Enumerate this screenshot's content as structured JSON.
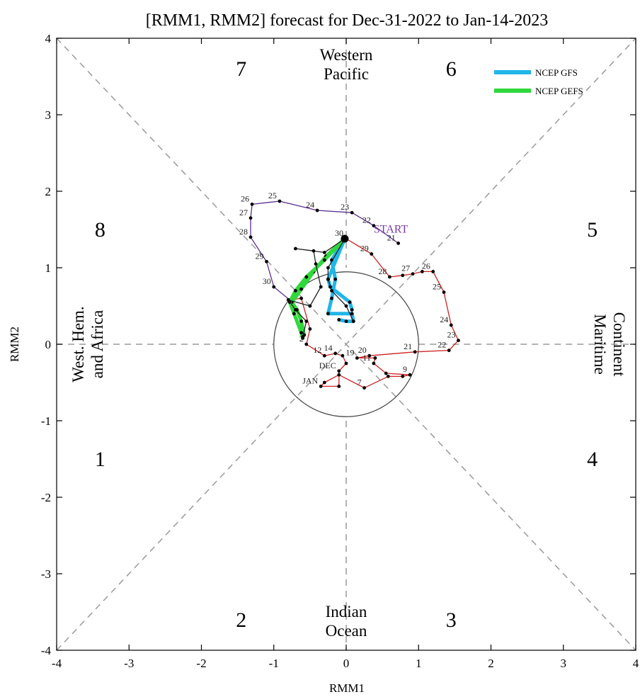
{
  "chart_data": {
    "type": "line",
    "title": "[RMM1, RMM2] forecast for Dec-31-2022 to Jan-14-2023",
    "xlabel": "RMM1",
    "ylabel": "RMM2",
    "xlim": [
      -4,
      4
    ],
    "ylim": [
      -4,
      4
    ],
    "xticks": [
      -4,
      -3,
      -2,
      -1,
      0,
      1,
      2,
      3,
      4
    ],
    "yticks": [
      -4,
      -3,
      -2,
      -1,
      0,
      1,
      2,
      3,
      4
    ],
    "xtick_labels": [
      "-4",
      "-3",
      "-2",
      "-1",
      "0",
      "1",
      "2",
      "3",
      "4"
    ],
    "ytick_labels": [
      "-4",
      "-3",
      "-2",
      "-1",
      "0",
      "1",
      "2",
      "3",
      "4"
    ],
    "phases": [
      {
        "label": "1",
        "x": -3.4,
        "y": -1.5
      },
      {
        "label": "2",
        "x": -1.45,
        "y": -3.6
      },
      {
        "label": "3",
        "x": 1.45,
        "y": -3.6
      },
      {
        "label": "4",
        "x": 3.4,
        "y": -1.5
      },
      {
        "label": "5",
        "x": 3.4,
        "y": 1.5
      },
      {
        "label": "6",
        "x": 1.45,
        "y": 3.6
      },
      {
        "label": "7",
        "x": -1.45,
        "y": 3.6
      },
      {
        "label": "8",
        "x": -3.4,
        "y": 1.5
      }
    ],
    "regions": {
      "top": [
        "Western",
        "Pacific"
      ],
      "bottom": [
        "Indian",
        "Ocean"
      ],
      "left": [
        "West. Hem.",
        "and Africa"
      ],
      "right": [
        "Maritime",
        "Continent"
      ]
    },
    "legend": {
      "placement": "top-right",
      "entries": [
        {
          "label": "NCEP GFS",
          "color": "#21b6e8"
        },
        {
          "label": "NCEP GEFS",
          "color": "#2fd83c"
        }
      ]
    },
    "start_label": "START",
    "series": [
      {
        "color": "#5b2d8e",
        "points": [
          [
            0.72,
            1.32
          ],
          [
            0.38,
            1.55
          ],
          [
            0.08,
            1.72
          ],
          [
            -0.4,
            1.75
          ],
          [
            -0.92,
            1.87
          ],
          [
            -1.3,
            1.83
          ],
          [
            -1.32,
            1.65
          ],
          [
            -1.32,
            1.4
          ],
          [
            -1.1,
            1.08
          ],
          [
            -1.0,
            0.75
          ],
          [
            -0.78,
            0.58
          ]
        ],
        "labels": [
          {
            "text": "21",
            "i": 0
          },
          {
            "text": "22",
            "i": 1
          },
          {
            "text": "23",
            "i": 2
          },
          {
            "text": "24",
            "i": 3
          },
          {
            "text": "25",
            "i": 4
          },
          {
            "text": "26",
            "i": 5
          },
          {
            "text": "27",
            "i": 6
          },
          {
            "text": "28",
            "i": 7
          },
          {
            "text": "29",
            "i": 8
          },
          {
            "text": "30",
            "i": 9
          }
        ]
      },
      {
        "color": "#cc2222",
        "points": [
          [
            -0.78,
            0.58
          ],
          [
            -0.62,
            0.6
          ],
          [
            -0.5,
            0.2
          ],
          [
            -0.55,
            0.0
          ],
          [
            -0.3,
            -0.15
          ],
          [
            -0.15,
            -0.12
          ],
          [
            -0.05,
            -0.15
          ],
          [
            0.0,
            -0.25
          ],
          [
            -0.1,
            -0.35
          ],
          [
            -0.1,
            -0.55
          ],
          [
            -0.35,
            -0.55
          ],
          [
            -0.3,
            -0.5
          ],
          [
            -0.1,
            -0.4
          ],
          [
            0.25,
            -0.57
          ],
          [
            0.58,
            -0.42
          ],
          [
            0.78,
            -0.42
          ],
          [
            0.88,
            -0.4
          ],
          [
            0.55,
            -0.38
          ],
          [
            0.38,
            -0.25
          ],
          [
            0.4,
            -0.18
          ],
          [
            0.15,
            -0.18
          ],
          [
            0.32,
            -0.15
          ],
          [
            0.95,
            -0.1
          ],
          [
            1.42,
            -0.08
          ],
          [
            1.55,
            0.05
          ],
          [
            1.45,
            0.25
          ],
          [
            1.35,
            0.68
          ],
          [
            1.2,
            0.95
          ],
          [
            1.05,
            0.95
          ],
          [
            0.92,
            0.92
          ],
          [
            0.78,
            0.9
          ],
          [
            0.6,
            0.88
          ],
          [
            0.35,
            1.18
          ],
          [
            0.0,
            1.38
          ]
        ],
        "labels": [
          {
            "text": "2",
            "i": 3
          },
          {
            "text": "12",
            "i": 4
          },
          {
            "text": "14",
            "i": 5
          },
          {
            "text": "DEC",
            "i": 8
          },
          {
            "text": "JAN",
            "i": 10
          },
          {
            "text": "7",
            "i": 13
          },
          {
            "text": "9",
            "i": 16
          },
          {
            "text": "11",
            "i": 18
          },
          {
            "text": "19",
            "i": 20
          },
          {
            "text": "20",
            "i": 21
          },
          {
            "text": "21",
            "i": 22
          },
          {
            "text": "22",
            "i": 23
          },
          {
            "text": "23",
            "i": 24
          },
          {
            "text": "24",
            "i": 25
          },
          {
            "text": "25",
            "i": 26
          },
          {
            "text": "26",
            "i": 27
          },
          {
            "text": "27",
            "i": 29
          },
          {
            "text": "28",
            "i": 31
          },
          {
            "text": "29",
            "i": 32
          },
          {
            "text": "30",
            "i": 33
          }
        ]
      },
      {
        "name": "NCEP GFS",
        "color": "#21b6e8",
        "points": [
          [
            -0.02,
            1.38
          ],
          [
            -0.2,
            1.1
          ],
          [
            -0.15,
            0.85
          ],
          [
            -0.2,
            0.6
          ],
          [
            -0.25,
            0.4
          ],
          [
            0.08,
            0.4
          ],
          [
            0.1,
            0.3
          ],
          [
            0.0,
            0.3
          ],
          [
            -0.1,
            0.32
          ]
        ]
      },
      {
        "name": "NCEP GFS",
        "color": "#21b6e8",
        "points": [
          [
            -0.02,
            1.38
          ],
          [
            -0.25,
            0.85
          ],
          [
            -0.22,
            0.75
          ],
          [
            0.05,
            0.55
          ],
          [
            0.08,
            0.45
          ]
        ]
      },
      {
        "name": "NCEP GEFS",
        "color": "#2fd83c",
        "points": [
          [
            -0.02,
            1.38
          ],
          [
            -0.28,
            1.15
          ],
          [
            -0.45,
            0.95
          ],
          [
            -0.62,
            0.72
          ],
          [
            -0.75,
            0.55
          ],
          [
            -0.68,
            0.45
          ],
          [
            -0.62,
            0.3
          ],
          [
            -0.58,
            0.12
          ]
        ]
      },
      {
        "name": "NCEP GEFS",
        "color": "#2fd83c",
        "points": [
          [
            -0.02,
            1.38
          ],
          [
            -0.3,
            1.1
          ],
          [
            -0.55,
            0.88
          ],
          [
            -0.7,
            0.7
          ],
          [
            -0.78,
            0.55
          ],
          [
            -0.72,
            0.4
          ],
          [
            -0.62,
            0.15
          ],
          [
            -0.6,
            0.08
          ]
        ]
      },
      {
        "color": "#222222",
        "points": [
          [
            -0.02,
            1.38
          ],
          [
            -0.3,
            1.2
          ],
          [
            -0.7,
            1.25
          ],
          [
            -0.45,
            1.22
          ],
          [
            -0.42,
            1.05
          ],
          [
            -0.35,
            0.75
          ],
          [
            -0.5,
            0.5
          ],
          [
            -0.8,
            0.58
          ],
          [
            -0.7,
            0.45
          ],
          [
            -0.55,
            0.3
          ],
          [
            -0.6,
            0.1
          ]
        ]
      },
      {
        "color": "#222222",
        "points": [
          [
            -0.02,
            1.38
          ],
          [
            -0.25,
            1.0
          ],
          [
            -0.25,
            0.85
          ],
          [
            -0.2,
            0.7
          ],
          [
            0.0,
            0.5
          ],
          [
            0.1,
            0.3
          ]
        ]
      }
    ]
  }
}
